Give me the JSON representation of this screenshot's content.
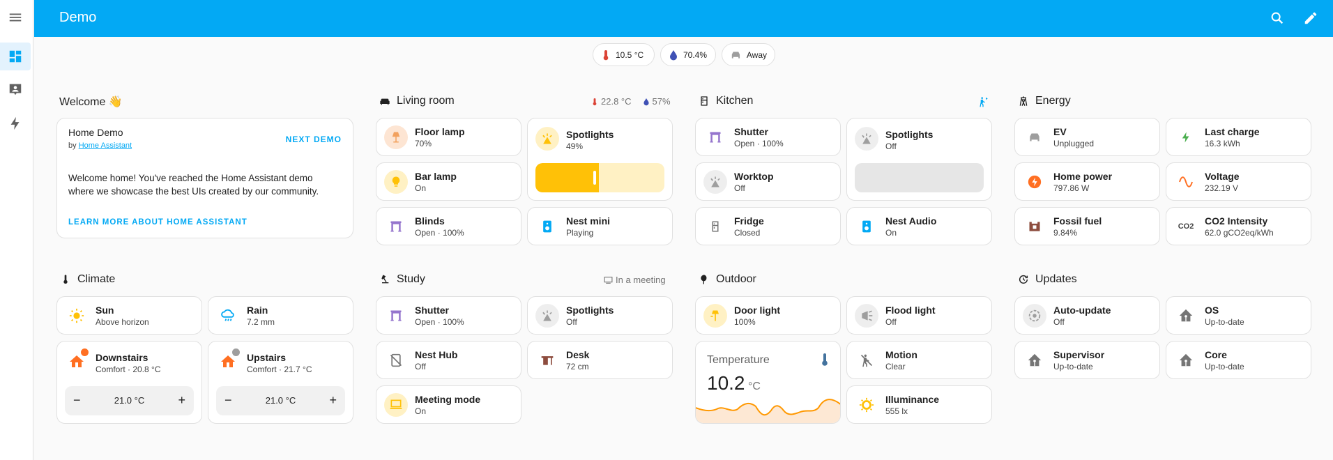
{
  "app": {
    "title": "Demo"
  },
  "badges": [
    {
      "label": "10.5 °C",
      "icon": "thermometer-icon",
      "color": "#db4437"
    },
    {
      "label": "70.4%",
      "icon": "water-percent-icon",
      "color": "#3f51b5"
    },
    {
      "label": "Away",
      "icon": "car-icon",
      "color": "#9e9e9e"
    }
  ],
  "welcome": {
    "heading": "Welcome 👋",
    "card_title": "Home Demo",
    "by_prefix": "by",
    "by_link": "Home Assistant",
    "next_demo": "NEXT DEMO",
    "body": "Welcome home! You've reached the Home Assistant demo where we showcase the best UIs created by our community.",
    "learn_more": "LEARN MORE ABOUT HOME ASSISTANT"
  },
  "living_room": {
    "heading": "Living room",
    "temp": "22.8 °C",
    "humidity": "57%",
    "tiles": {
      "floor_lamp": {
        "name": "Floor lamp",
        "state": "70%"
      },
      "spotlights": {
        "name": "Spotlights",
        "state": "49%",
        "level": 0.49
      },
      "bar_lamp": {
        "name": "Bar lamp",
        "state": "On"
      },
      "blinds": {
        "name": "Blinds",
        "state": "Open · 100%"
      },
      "nest_mini": {
        "name": "Nest mini",
        "state": "Playing"
      }
    }
  },
  "kitchen": {
    "heading": "Kitchen",
    "tiles": {
      "shutter": {
        "name": "Shutter",
        "state": "Open · 100%"
      },
      "spotlights": {
        "name": "Spotlights",
        "state": "Off"
      },
      "worktop": {
        "name": "Worktop",
        "state": "Off"
      },
      "fridge": {
        "name": "Fridge",
        "state": "Closed"
      },
      "nest_audio": {
        "name": "Nest Audio",
        "state": "On"
      }
    }
  },
  "energy": {
    "heading": "Energy",
    "tiles": {
      "ev": {
        "name": "EV",
        "state": "Unplugged"
      },
      "last_charge": {
        "name": "Last charge",
        "state": "16.3 kWh"
      },
      "home_power": {
        "name": "Home power",
        "state": "797.86 W"
      },
      "voltage": {
        "name": "Voltage",
        "state": "232.19 V"
      },
      "fossil_fuel": {
        "name": "Fossil fuel",
        "state": "9.84%"
      },
      "co2": {
        "name": "CO2 Intensity",
        "state": "62.0 gCO2eq/kWh",
        "icon_text": "CO2"
      }
    }
  },
  "climate": {
    "heading": "Climate",
    "tiles": {
      "sun": {
        "name": "Sun",
        "state": "Above horizon"
      },
      "rain": {
        "name": "Rain",
        "state": "7.2 mm"
      },
      "downstairs": {
        "name": "Downstairs",
        "state": "Comfort · 20.8 °C",
        "target": "21.0 °C"
      },
      "upstairs": {
        "name": "Upstairs",
        "state": "Comfort · 21.7 °C",
        "target": "21.0 °C"
      }
    },
    "minus": "−",
    "plus": "+"
  },
  "study": {
    "heading": "Study",
    "status": "In a meeting",
    "tiles": {
      "shutter": {
        "name": "Shutter",
        "state": "Open · 100%"
      },
      "spotlights": {
        "name": "Spotlights",
        "state": "Off"
      },
      "nest_hub": {
        "name": "Nest Hub",
        "state": "Off"
      },
      "desk": {
        "name": "Desk",
        "state": "72 cm"
      },
      "meeting_mode": {
        "name": "Meeting mode",
        "state": "On"
      }
    }
  },
  "outdoor": {
    "heading": "Outdoor",
    "tiles": {
      "door_light": {
        "name": "Door light",
        "state": "100%"
      },
      "flood_light": {
        "name": "Flood light",
        "state": "Off"
      },
      "motion": {
        "name": "Motion",
        "state": "Clear"
      },
      "illuminance": {
        "name": "Illuminance",
        "state": "555 lx"
      }
    },
    "temperature": {
      "title": "Temperature",
      "value": "10.2",
      "unit": "°C"
    }
  },
  "updates": {
    "heading": "Updates",
    "tiles": {
      "auto_update": {
        "name": "Auto-update",
        "state": "Off"
      },
      "os": {
        "name": "OS",
        "state": "Up-to-date"
      },
      "supervisor": {
        "name": "Supervisor",
        "state": "Up-to-date"
      },
      "core": {
        "name": "Core",
        "state": "Up-to-date"
      }
    }
  },
  "colors": {
    "primary": "#03a9f4",
    "light_on": "#ffc107",
    "cover": "#9575cd",
    "media": "#03a9f4",
    "heat": "#ff6f22",
    "grey_icon": "#757575"
  }
}
